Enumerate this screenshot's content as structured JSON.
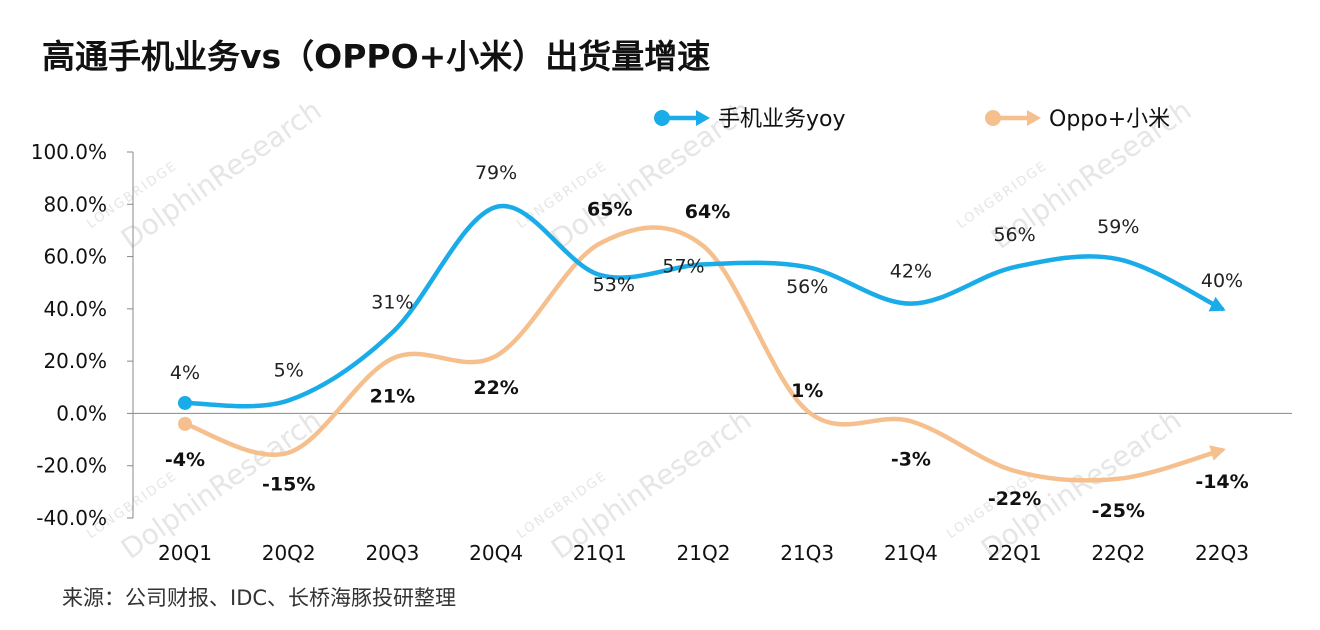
{
  "title": "高通手机业务vs（OPPO+小米）出货量增速",
  "source": "来源：公司财报、IDC、长桥海豚投研整理",
  "watermark": {
    "main": "DolphinResearch",
    "small": "LONGBRIDGE"
  },
  "chart_data": {
    "type": "line",
    "categories": [
      "20Q1",
      "20Q2",
      "20Q3",
      "20Q4",
      "21Q1",
      "21Q2",
      "21Q3",
      "21Q4",
      "22Q1",
      "22Q2",
      "22Q3"
    ],
    "ylim": [
      -40,
      100
    ],
    "yticks": [
      100,
      80,
      60,
      40,
      20,
      0,
      -20,
      -40
    ],
    "ytick_labels": [
      "100.0%",
      "80.0%",
      "60.0%",
      "40.0%",
      "20.0%",
      "0.0%",
      "-20.0%",
      "-40.0%"
    ],
    "legend_position": "top-right",
    "series": [
      {
        "name": "手机业务yoy",
        "color": "#1AACE8",
        "values": [
          4,
          5,
          31,
          79,
          53,
          57,
          56,
          42,
          56,
          59,
          40
        ],
        "labels": [
          "4%",
          "5%",
          "31%",
          "79%",
          "53%",
          "57%",
          "56%",
          "42%",
          "56%",
          "59%",
          "40%"
        ]
      },
      {
        "name": "Oppo+小米",
        "color": "#F5C08D",
        "values": [
          -4,
          -15,
          21,
          22,
          65,
          64,
          1,
          -3,
          -22,
          -25,
          -14
        ],
        "labels": [
          "-4%",
          "-15%",
          "21%",
          "22%",
          "65%",
          "64%",
          "1%",
          "-3%",
          "-22%",
          "-25%",
          "-14%"
        ]
      }
    ]
  }
}
